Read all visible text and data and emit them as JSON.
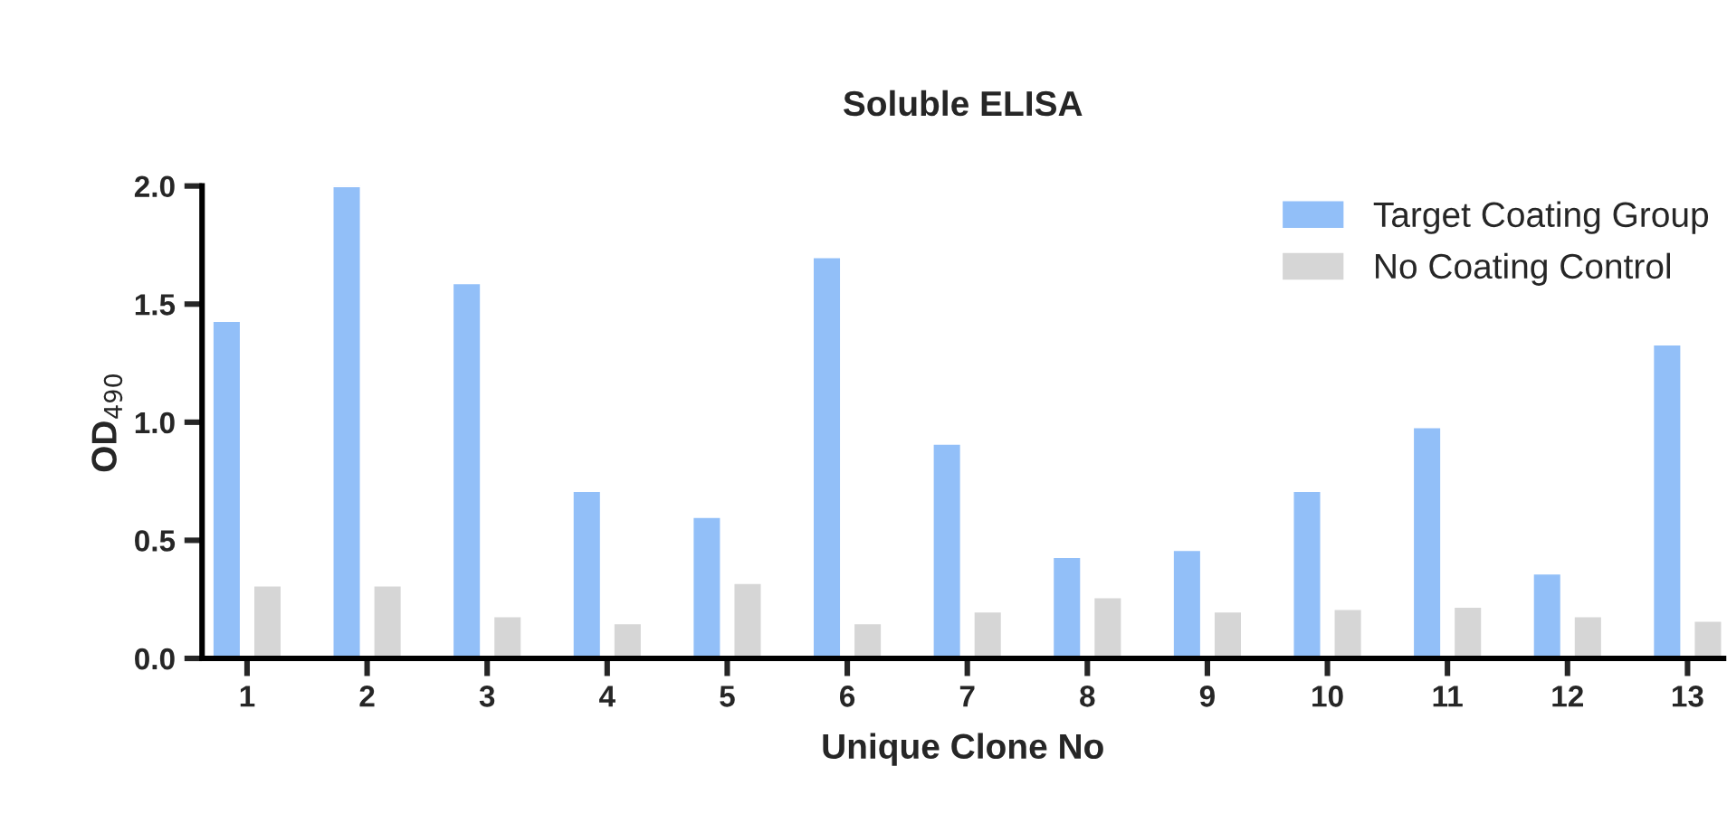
{
  "chart_data": {
    "type": "bar",
    "title": "Soluble ELISA",
    "xlabel": "Unique Clone No",
    "ylabel": "OD$_{490}$",
    "categories": [
      "1",
      "2",
      "3",
      "4",
      "5",
      "6",
      "7",
      "8",
      "9",
      "10",
      "11",
      "12",
      "13"
    ],
    "series": [
      {
        "name": "Target Coating Group",
        "color": "#92bff8",
        "values": [
          1.43,
          2.0,
          1.59,
          0.71,
          0.6,
          1.7,
          0.91,
          0.43,
          0.46,
          0.71,
          0.98,
          0.36,
          1.33
        ]
      },
      {
        "name": "No Coating Control",
        "color": "#d6d6d6",
        "values": [
          0.31,
          0.31,
          0.18,
          0.15,
          0.32,
          0.15,
          0.2,
          0.26,
          0.2,
          0.21,
          0.22,
          0.18,
          0.16
        ]
      }
    ],
    "ylim": [
      0,
      2.0
    ],
    "yticks": [
      {
        "value": 0,
        "label": "0.0"
      },
      {
        "value": 0.5,
        "label": "0.5"
      },
      {
        "value": 1.0,
        "label": "1.0"
      },
      {
        "value": 1.5,
        "label": "1.5"
      },
      {
        "value": 2.0,
        "label": "2.0"
      }
    ],
    "grid": false,
    "legend": "top right"
  }
}
